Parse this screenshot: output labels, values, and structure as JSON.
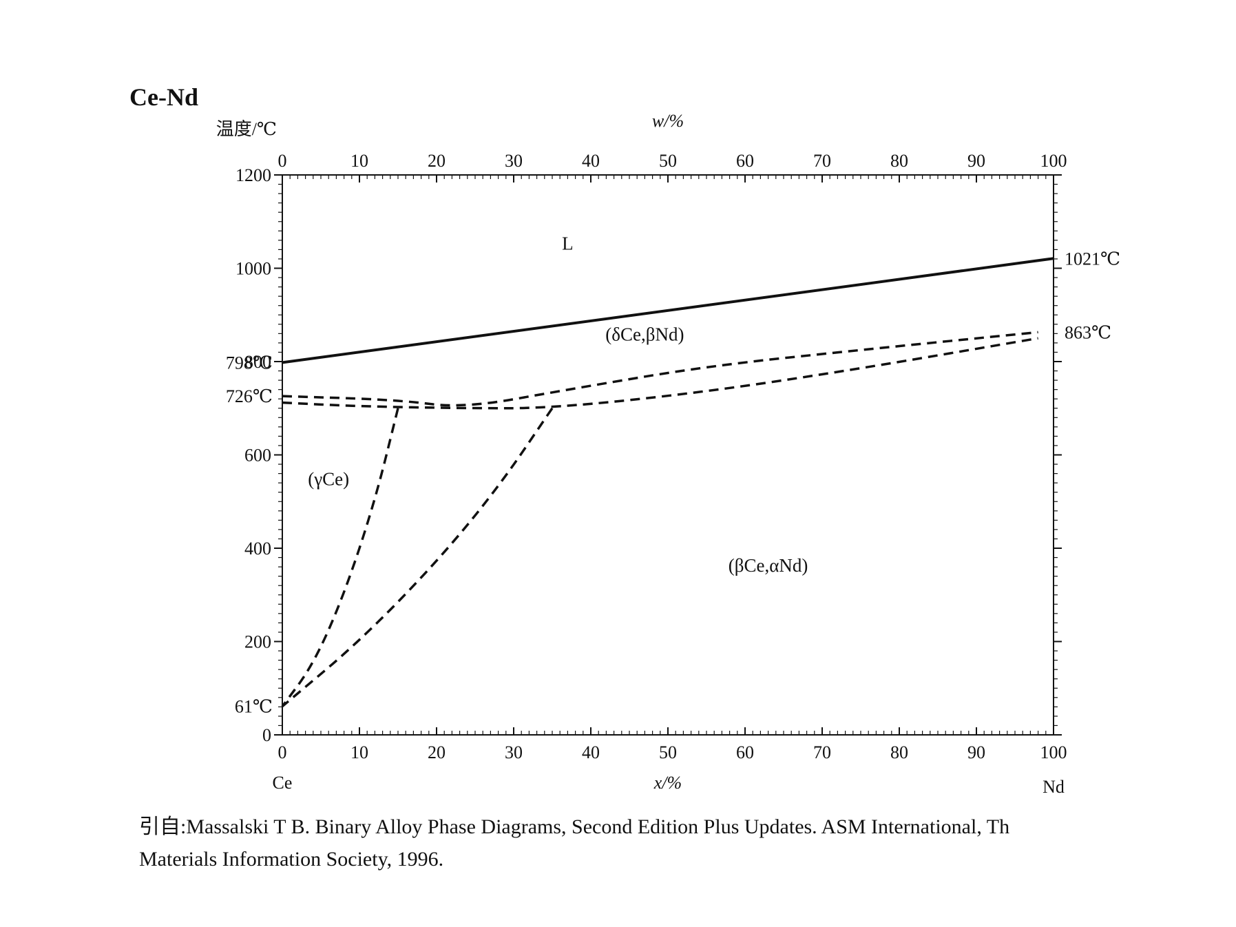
{
  "title": "Ce-Nd",
  "citation": {
    "line1": "引自:Massalski T B. Binary Alloy Phase Diagrams, Second Edition Plus Updates. ASM International, Th",
    "line2": "Materials Information Society, 1996."
  },
  "chart_data": {
    "type": "line",
    "title": "Ce-Nd",
    "ylabel": "温度/℃",
    "xlabel": "x/%",
    "x2label": "w/%",
    "ylim": [
      0,
      1200
    ],
    "xlim": [
      0,
      100
    ],
    "yticks": [
      0,
      200,
      400,
      600,
      800,
      1000,
      1200
    ],
    "xticks": [
      0,
      10,
      20,
      30,
      40,
      50,
      60,
      70,
      80,
      90,
      100
    ],
    "x2ticks": [
      0,
      10,
      20,
      30,
      40,
      50,
      60,
      70,
      80,
      90,
      100
    ],
    "x_end_labels": {
      "left": "Ce",
      "right": "Nd"
    },
    "temperature_labels": [
      {
        "text": "798℃",
        "y": 798,
        "side": "left"
      },
      {
        "text": "726℃",
        "y": 726,
        "side": "left"
      },
      {
        "text": "61℃",
        "y": 61,
        "side": "left"
      },
      {
        "text": "1021℃",
        "y": 1021,
        "side": "right"
      },
      {
        "text": "863℃",
        "y": 863,
        "side": "right"
      }
    ],
    "region_labels": [
      {
        "text": "L",
        "x": 37,
        "y": 1040
      },
      {
        "text": "(δCe,βNd)",
        "x": 47,
        "y": 845
      },
      {
        "text": "(γCe)",
        "x": 6,
        "y": 535
      },
      {
        "text": "(βCe,αNd)",
        "x": 63,
        "y": 350
      }
    ],
    "series": [
      {
        "style": "solid",
        "points": [
          [
            0,
            798
          ],
          [
            100,
            1021
          ]
        ]
      },
      {
        "style": "dashed",
        "points": [
          [
            0,
            726
          ],
          [
            15,
            718
          ],
          [
            23.5,
            700
          ],
          [
            37,
            740
          ],
          [
            55,
            790
          ],
          [
            75,
            825
          ],
          [
            98,
            863
          ]
        ]
      },
      {
        "style": "dashed",
        "points": [
          [
            0,
            712
          ],
          [
            10,
            704
          ],
          [
            23.5,
            700
          ],
          [
            35,
            700
          ],
          [
            55,
            735
          ],
          [
            75,
            785
          ],
          [
            98,
            850
          ]
        ]
      },
      {
        "style": "dashed",
        "points": [
          [
            15,
            700
          ],
          [
            12,
            500
          ],
          [
            8,
            300
          ],
          [
            4,
            150
          ],
          [
            0,
            61
          ]
        ]
      },
      {
        "style": "dashed",
        "points": [
          [
            35,
            700
          ],
          [
            28,
            530
          ],
          [
            20,
            370
          ],
          [
            10,
            200
          ],
          [
            0,
            61
          ]
        ]
      }
    ]
  }
}
